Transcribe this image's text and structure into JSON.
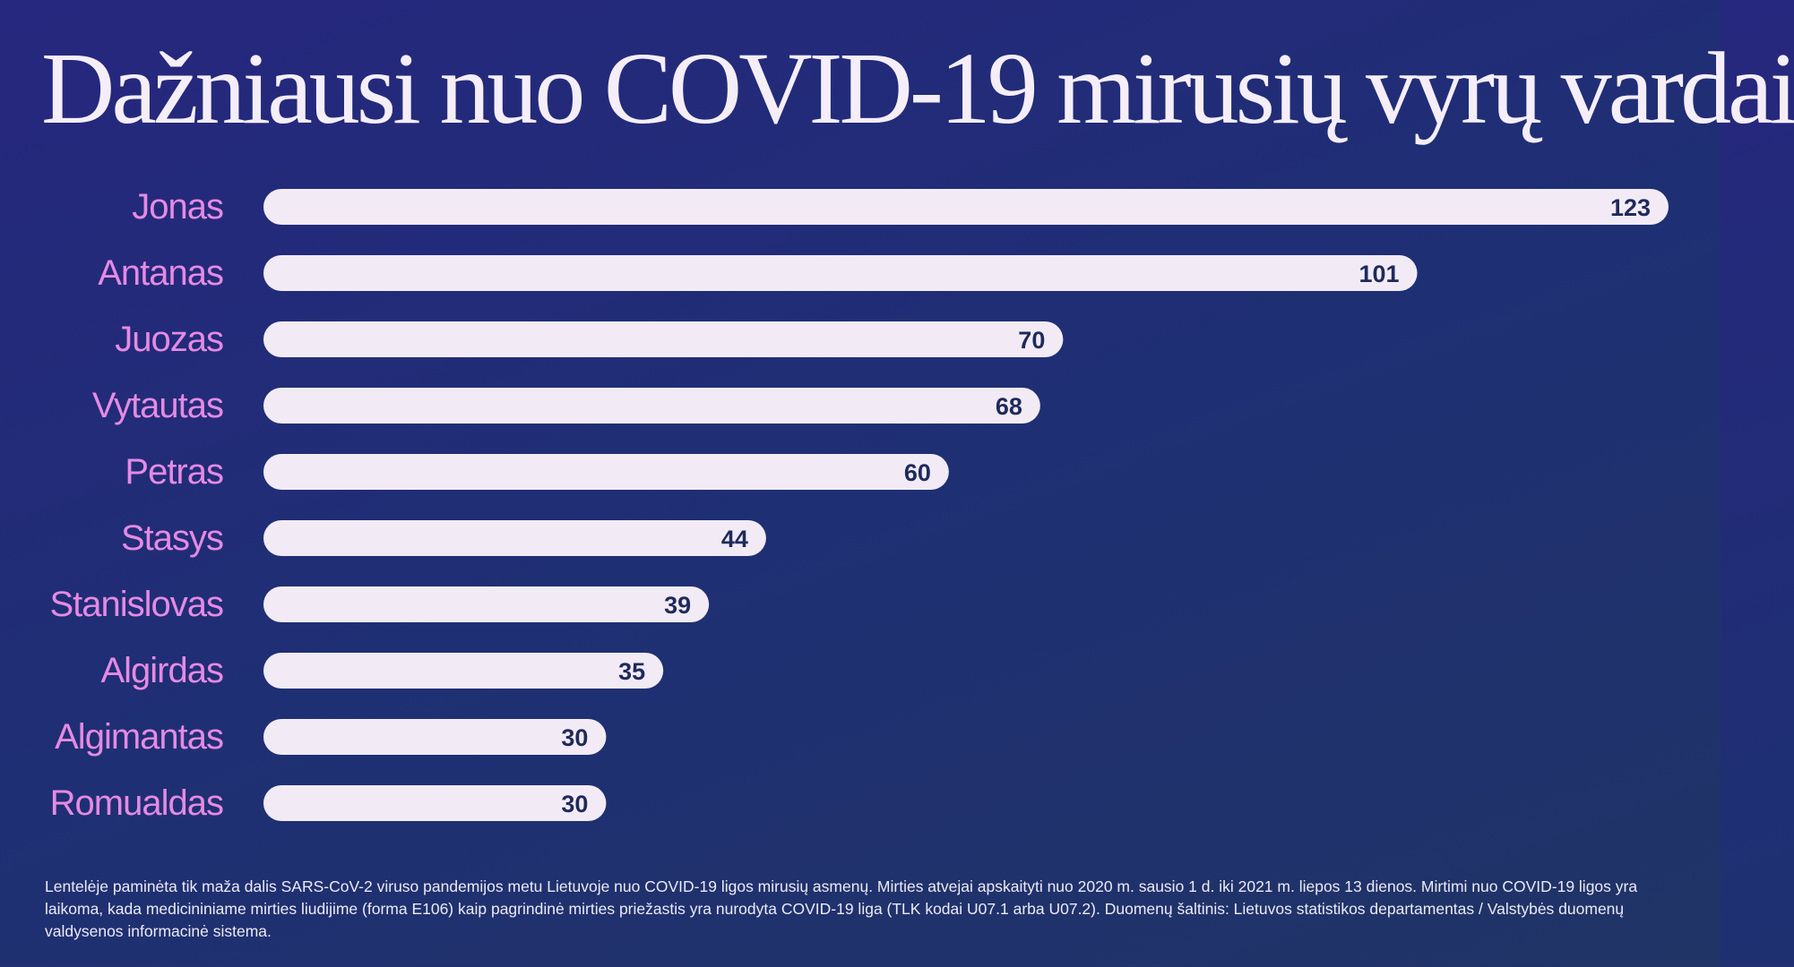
{
  "title": "Dažniausi nuo COVID-19 mirusių vyrų vardai",
  "colors": {
    "label": "#e58ae4",
    "bar": "#f2ebf5",
    "value": "#1f2a5c"
  },
  "chart_data": {
    "type": "bar",
    "orientation": "horizontal",
    "title": "Dažniausi nuo COVID-19 mirusių vyrų vardai",
    "categories": [
      "Jonas",
      "Antanas",
      "Juozas",
      "Vytautas",
      "Petras",
      "Stasys",
      "Stanislovas",
      "Algirdas",
      "Algimantas",
      "Romualdas"
    ],
    "values": [
      123,
      101,
      70,
      68,
      60,
      44,
      39,
      35,
      30,
      30
    ],
    "xlabel": "",
    "ylabel": "",
    "xlim": [
      0,
      123
    ],
    "grid": false
  },
  "footnote": "Lentelėje paminėta tik maža dalis SARS-CoV-2 viruso pandemijos metu Lietuvoje nuo COVID-19 ligos mirusių asmenų. Mirties atvejai apskaityti nuo 2020 m. sausio 1 d. iki 2021 m. liepos 13 dienos. Mirtimi nuo COVID-19 ligos yra laikoma, kada medicininiame mirties liudijime (forma E106) kaip pagrindinė mirties priežastis yra nurodyta COVID-19 liga (TLK kodai U07.1 arba U07.2). Duomenų šaltinis: Lietuvos statistikos departamentas / Valstybės duomenų valdysenos informacinė sistema."
}
